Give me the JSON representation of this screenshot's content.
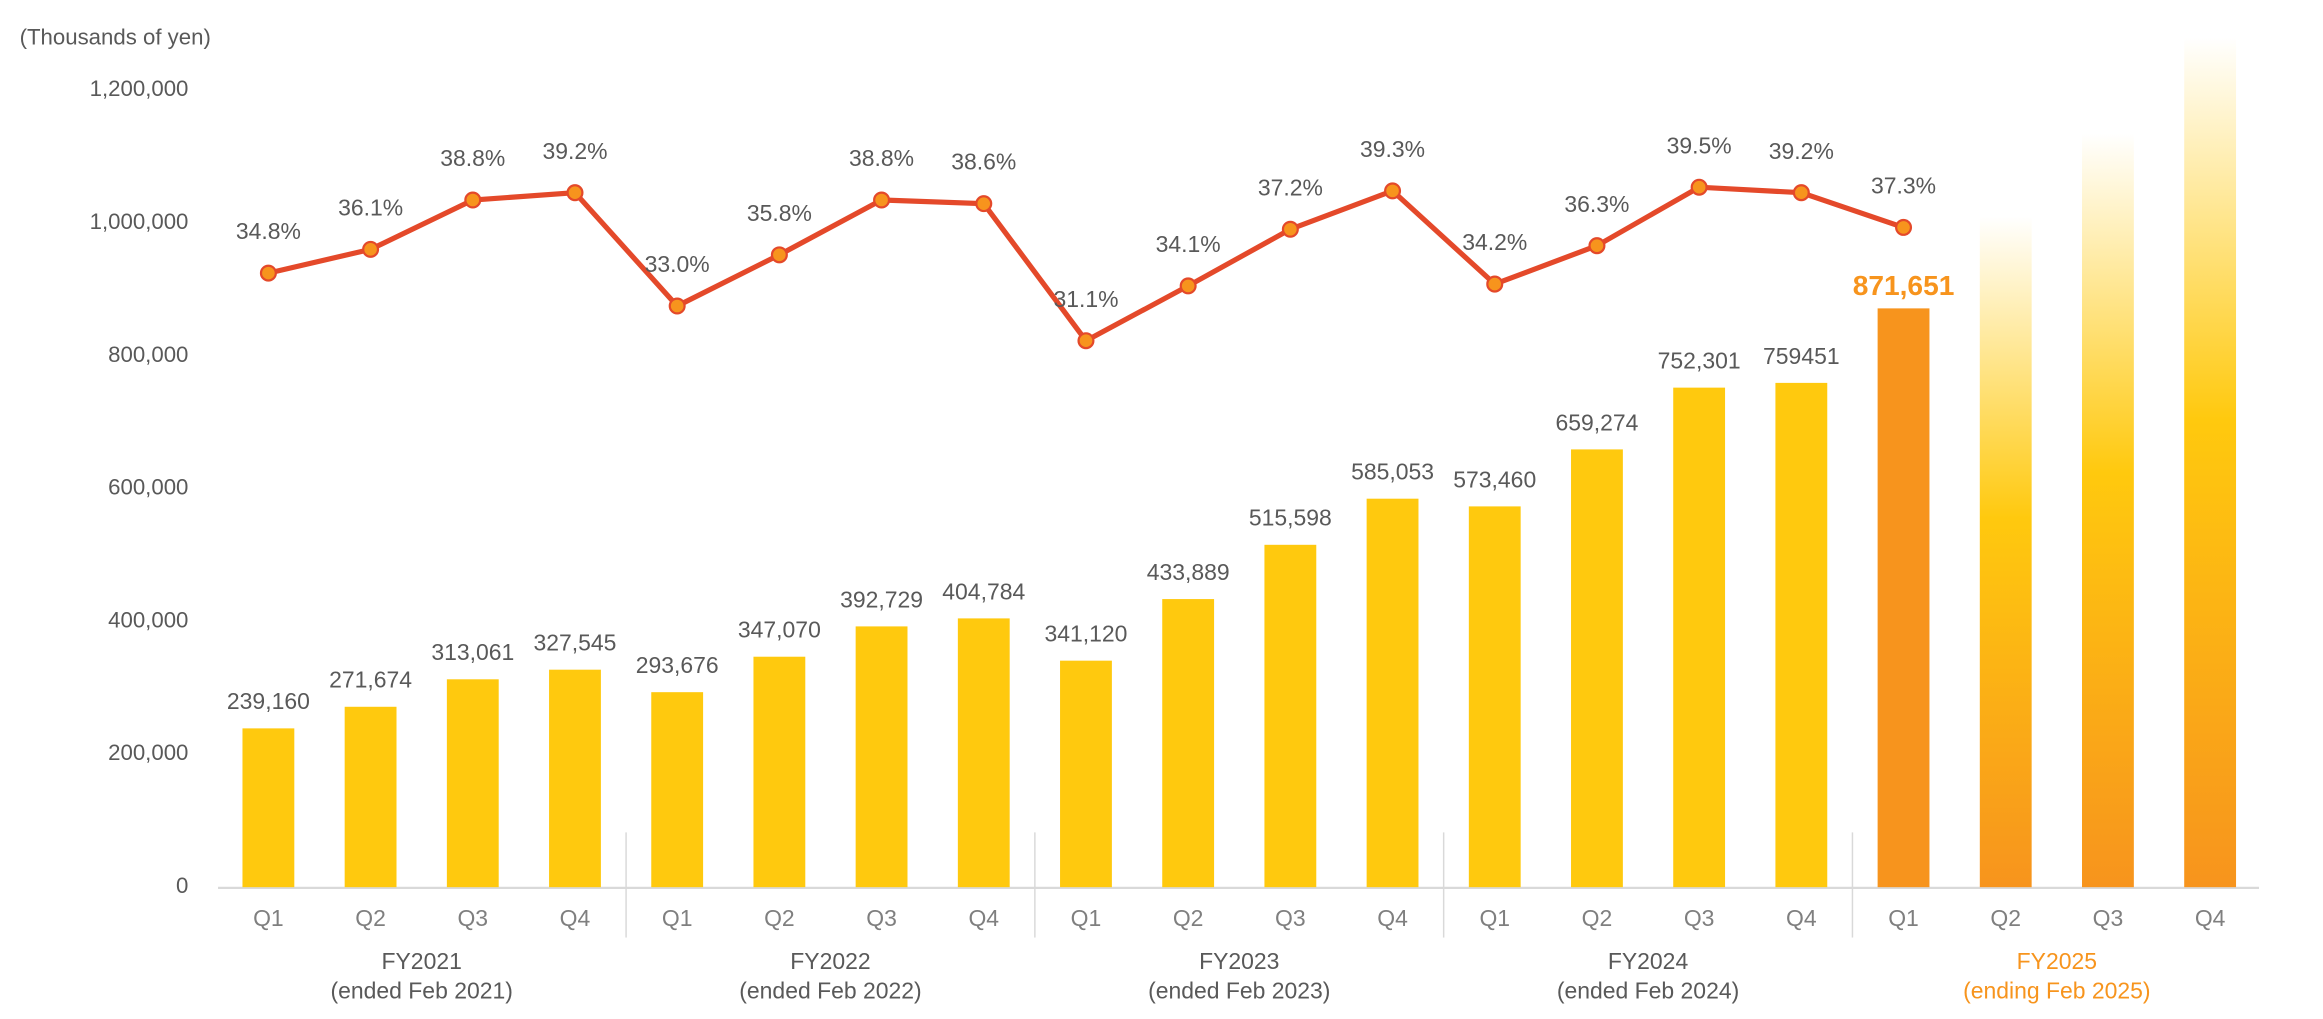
{
  "chart_data": {
    "type": "bar_line",
    "unit_label": "(Thousands of yen)",
    "categories": [
      "Q1",
      "Q2",
      "Q3",
      "Q4",
      "Q1",
      "Q2",
      "Q3",
      "Q4",
      "Q1",
      "Q2",
      "Q3",
      "Q4",
      "Q1",
      "Q2",
      "Q3",
      "Q4",
      "Q1",
      "Q2",
      "Q3",
      "Q4"
    ],
    "groups": [
      {
        "label": "FY2021",
        "sub": "(ended Feb 2021)",
        "color": "#595959"
      },
      {
        "label": "FY2022",
        "sub": "(ended Feb 2022)",
        "color": "#595959"
      },
      {
        "label": "FY2023",
        "sub": "(ended Feb 2023)",
        "color": "#595959"
      },
      {
        "label": "FY2024",
        "sub": "(ended Feb 2024)",
        "color": "#595959"
      },
      {
        "label": "FY2025",
        "sub": "(ending Feb 2025)",
        "color": "#F7941D"
      }
    ],
    "values": [
      239160,
      271674,
      313061,
      327545,
      293676,
      347070,
      392729,
      404784,
      341120,
      433889,
      515598,
      585053,
      573460,
      659274,
      752301,
      759451,
      871651,
      1010000,
      1135000,
      1280000
    ],
    "value_labels": [
      "239,160",
      "271,674",
      "313,061",
      "327,545",
      "293,676",
      "347,070",
      "392,729",
      "404,784",
      "341,120",
      "433,889",
      "515,598",
      "585,053",
      "573,460",
      "659,274",
      "752,301",
      "759451",
      "871,651",
      null,
      null,
      null
    ],
    "colors": [
      "#FFC90E",
      "#FFC90E",
      "#FFC90E",
      "#FFC90E",
      "#FFC90E",
      "#FFC90E",
      "#FFC90E",
      "#FFC90E",
      "#FFC90E",
      "#FFC90E",
      "#FFC90E",
      "#FFC90E",
      "#FFC90E",
      "#FFC90E",
      "#FFC90E",
      "#FFC90E",
      "#F7941D",
      "#F7941D",
      "#F7941D",
      "#F7941D"
    ],
    "ylim": [
      0,
      1200000
    ],
    "yticks": [
      0,
      {
        "value": 200000,
        "label": "200,000"
      },
      {
        "value": 400000,
        "label": "400,000"
      },
      {
        "value": 600000,
        "label": "600,000"
      },
      {
        "value": 800000,
        "label": "800,000"
      },
      {
        "value": 1000000,
        "label": "1,000,000"
      },
      {
        "value": 1200000,
        "label": "1,200,000"
      }
    ],
    "line": {
      "axis": "y2",
      "color": "#E4492A",
      "marker_color": "#F7941D",
      "values": [
        34.8,
        36.1,
        38.8,
        39.2,
        33.0,
        35.8,
        38.8,
        38.6,
        31.1,
        34.1,
        37.2,
        39.3,
        34.2,
        36.3,
        39.5,
        39.2,
        37.3
      ],
      "value_labels": [
        "34.8%",
        "36.1%",
        "38.8%",
        "39.2%",
        "33.0%",
        "35.8%",
        "38.8%",
        "38.6%",
        "31.1%",
        "34.1%",
        "37.2%",
        "39.3%",
        "34.2%",
        "36.3%",
        "39.5%",
        "39.2%",
        "37.3%"
      ]
    },
    "y2lim": [
      1.2,
      44.8
    ],
    "grid": false
  }
}
